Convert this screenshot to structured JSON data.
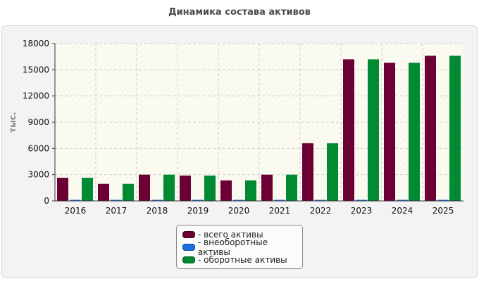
{
  "title": "Динамика состава активов",
  "chart_data": {
    "type": "bar",
    "title": "Динамика состава активов",
    "xlabel": "",
    "ylabel": "тыс.",
    "ylim": [
      0,
      18000
    ],
    "yticks": [
      0,
      3000,
      6000,
      9000,
      12000,
      15000,
      18000
    ],
    "categories": [
      "2016",
      "2017",
      "2018",
      "2019",
      "2020",
      "2021",
      "2022",
      "2023",
      "2024",
      "2025"
    ],
    "series": [
      {
        "name": "- всего активы",
        "color": "#6b0035",
        "values": [
          2650,
          1950,
          3000,
          2900,
          2350,
          3000,
          6600,
          16200,
          15800,
          16600
        ]
      },
      {
        "name": "- внеоборотные активы",
        "color": "#1a6fe0",
        "values": [
          30,
          30,
          30,
          30,
          30,
          30,
          30,
          30,
          30,
          30
        ]
      },
      {
        "name": "- оборотные активы",
        "color": "#008a32",
        "values": [
          2650,
          1950,
          3000,
          2900,
          2350,
          3000,
          6600,
          16200,
          15800,
          16600
        ]
      }
    ],
    "grid": true,
    "legend_position": "bottom-center"
  }
}
